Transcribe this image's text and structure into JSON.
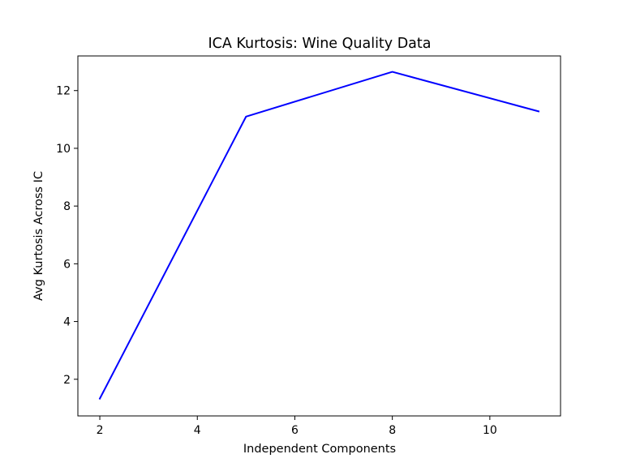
{
  "chart_data": {
    "type": "line",
    "title": "ICA Kurtosis: Wine Quality Data",
    "xlabel": "Independent Components",
    "ylabel": "Avg Kurtosis Across IC",
    "xlim": [
      1.55,
      11.45
    ],
    "ylim": [
      0.73,
      13.2
    ],
    "xticks": [
      2,
      4,
      6,
      8,
      10
    ],
    "yticks": [
      2,
      4,
      6,
      8,
      10,
      12
    ],
    "grid": false,
    "series": [
      {
        "name": "Avg Kurtosis",
        "color": "#0000ff",
        "x": [
          2,
          5,
          8,
          11
        ],
        "y": [
          1.33,
          11.1,
          12.65,
          11.28
        ]
      }
    ]
  }
}
